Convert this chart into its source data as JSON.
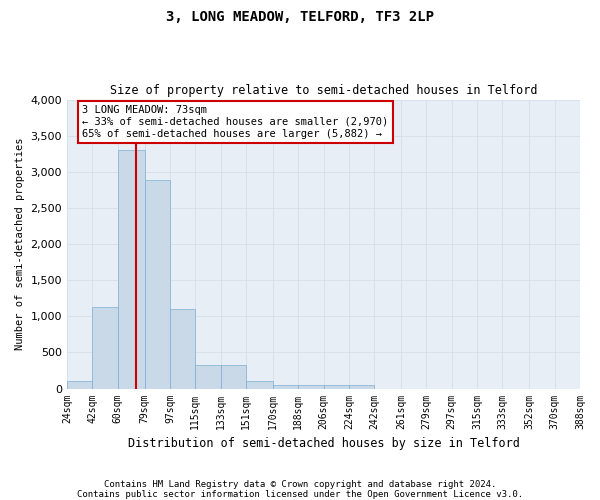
{
  "title": "3, LONG MEADOW, TELFORD, TF3 2LP",
  "subtitle": "Size of property relative to semi-detached houses in Telford",
  "xlabel": "Distribution of semi-detached houses by size in Telford",
  "ylabel": "Number of semi-detached properties",
  "footnote1": "Contains HM Land Registry data © Crown copyright and database right 2024.",
  "footnote2": "Contains public sector information licensed under the Open Government Licence v3.0.",
  "annotation_line1": "3 LONG MEADOW: 73sqm",
  "annotation_line2": "← 33% of semi-detached houses are smaller (2,970)",
  "annotation_line3": "65% of semi-detached houses are larger (5,882) →",
  "property_size": 73,
  "bar_color": "#c9d9e8",
  "bar_edge_color": "#7bafd4",
  "vline_color": "#cc0000",
  "annotation_box_color": "#ffffff",
  "annotation_box_edge": "#cc0000",
  "grid_color": "#d0dce8",
  "background_color": "#e8eef5",
  "bin_edges": [
    24,
    42,
    60,
    79,
    97,
    115,
    133,
    151,
    170,
    188,
    206,
    224,
    242,
    261,
    279,
    297,
    315,
    333,
    352,
    370,
    388
  ],
  "bin_labels": [
    "24sqm",
    "42sqm",
    "60sqm",
    "79sqm",
    "97sqm",
    "115sqm",
    "133sqm",
    "151sqm",
    "170sqm",
    "188sqm",
    "206sqm",
    "224sqm",
    "242sqm",
    "261sqm",
    "279sqm",
    "297sqm",
    "315sqm",
    "333sqm",
    "352sqm",
    "370sqm",
    "388sqm"
  ],
  "bar_heights": [
    100,
    1130,
    3300,
    2880,
    1100,
    330,
    330,
    110,
    55,
    55,
    55,
    55,
    0,
    0,
    0,
    0,
    0,
    0,
    0,
    0
  ],
  "ylim": [
    0,
    4000
  ],
  "yticks": [
    0,
    500,
    1000,
    1500,
    2000,
    2500,
    3000,
    3500,
    4000
  ]
}
